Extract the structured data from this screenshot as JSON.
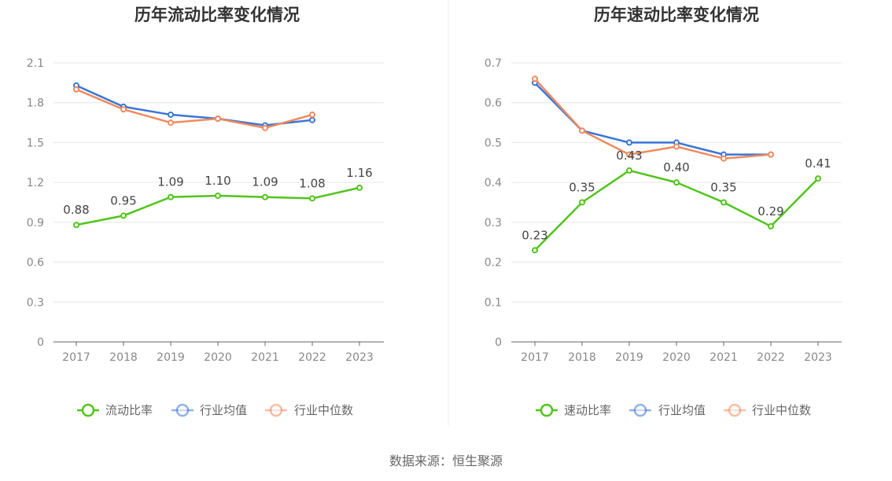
{
  "chart_data": [
    {
      "type": "line",
      "title": "历年流动比率变化情况",
      "categories": [
        "2017",
        "2018",
        "2019",
        "2020",
        "2021",
        "2022",
        "2023"
      ],
      "y_ticks": [
        "0",
        "0.3",
        "0.6",
        "0.9",
        "1.2",
        "1.5",
        "1.8",
        "2.1"
      ],
      "ylim": [
        0,
        2.1
      ],
      "grid": true,
      "legend_position": "bottom",
      "series": [
        {
          "name": "流动比率",
          "color": "#52c41a",
          "show_labels": true,
          "values": [
            0.88,
            0.95,
            1.09,
            1.1,
            1.09,
            1.08,
            1.16
          ],
          "labels": [
            "0.88",
            "0.95",
            "1.09",
            "1.10",
            "1.09",
            "1.08",
            "1.16"
          ]
        },
        {
          "name": "行业均值",
          "color": "#3a75d6",
          "values": [
            1.93,
            1.77,
            1.71,
            1.68,
            1.63,
            1.67,
            null
          ]
        },
        {
          "name": "行业中位数",
          "color": "#ef8a5e",
          "values": [
            1.9,
            1.75,
            1.65,
            1.68,
            1.61,
            1.71,
            null
          ]
        }
      ]
    },
    {
      "type": "line",
      "title": "历年速动比率变化情况",
      "categories": [
        "2017",
        "2018",
        "2019",
        "2020",
        "2021",
        "2022",
        "2023"
      ],
      "y_ticks": [
        "0",
        "0.1",
        "0.2",
        "0.3",
        "0.4",
        "0.5",
        "0.6",
        "0.7"
      ],
      "ylim": [
        0,
        0.7
      ],
      "grid": true,
      "legend_position": "bottom",
      "series": [
        {
          "name": "速动比率",
          "color": "#52c41a",
          "show_labels": true,
          "values": [
            0.23,
            0.35,
            0.43,
            0.4,
            0.35,
            0.29,
            0.41
          ],
          "labels": [
            "0.23",
            "0.35",
            "0.43",
            "0.40",
            "0.35",
            "0.29",
            "0.41"
          ]
        },
        {
          "name": "行业均值",
          "color": "#3a75d6",
          "values": [
            0.65,
            0.53,
            0.5,
            0.5,
            0.47,
            0.47,
            null
          ]
        },
        {
          "name": "行业中位数",
          "color": "#ef8a5e",
          "values": [
            0.66,
            0.53,
            0.47,
            0.49,
            0.46,
            0.47,
            null
          ]
        }
      ]
    }
  ],
  "source": "数据来源：恒生聚源"
}
